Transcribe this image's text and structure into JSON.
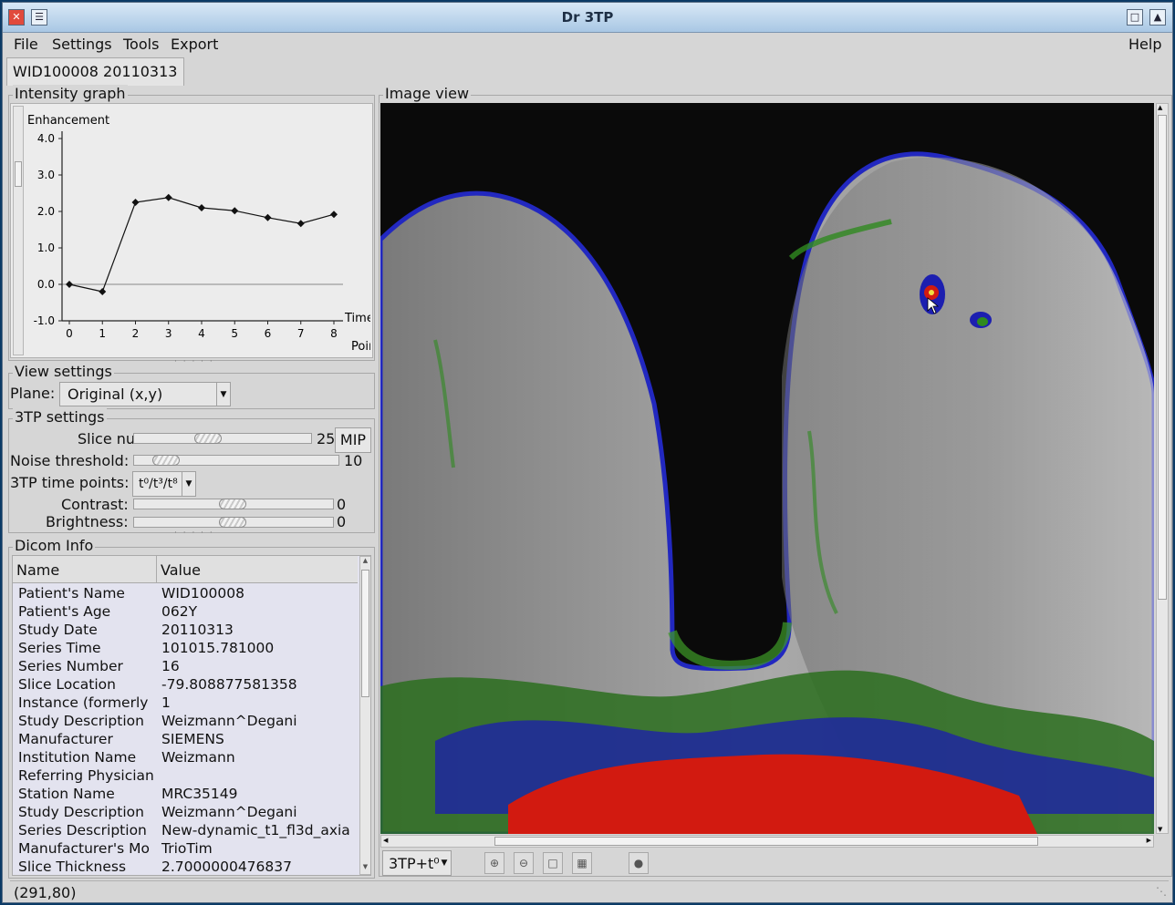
{
  "window": {
    "title": "Dr 3TP"
  },
  "menu": {
    "file": "File",
    "settings": "Settings",
    "tools": "Tools",
    "export": "Export",
    "help": "Help"
  },
  "tab": {
    "label": "WID100008  20110313"
  },
  "intensity": {
    "title": "Intensity graph",
    "chart_data": {
      "type": "line",
      "ylabel": "Enhancement",
      "xlabel": "Time Point",
      "x": [
        0,
        1,
        2,
        3,
        4,
        5,
        6,
        7,
        8
      ],
      "values": [
        0.0,
        -0.2,
        2.25,
        2.38,
        2.1,
        2.02,
        1.83,
        1.67,
        1.92
      ],
      "ylim": [
        -1.0,
        4.0
      ],
      "yticks": [
        "4.0",
        "3.0",
        "2.0",
        "1.0",
        "0.0",
        "-1.0"
      ],
      "xticks": [
        "0",
        "1",
        "2",
        "3",
        "4",
        "5",
        "6",
        "7",
        "8"
      ],
      "xlabel_line1": "Time",
      "xlabel_line2": "Point"
    }
  },
  "view_settings": {
    "title": "View settings",
    "plane_label": "Plane:",
    "plane_value": "Original (x,y)"
  },
  "tp_settings": {
    "title": "3TP settings",
    "slice_label": "Slice num:",
    "slice_value": "25",
    "mip_label": "MIP",
    "noise_label": "Noise threshold:",
    "noise_value": "10",
    "timepoints_label": "3TP time points:",
    "timepoints_value": "t⁰/t³/t⁸",
    "contrast_label": "Contrast:",
    "contrast_value": "0",
    "brightness_label": "Brightness:",
    "brightness_value": "0"
  },
  "dicom": {
    "title": "Dicom Info",
    "col_name": "Name",
    "col_value": "Value",
    "rows": [
      [
        "Patient's Name",
        "WID100008"
      ],
      [
        "Patient's Age",
        "062Y"
      ],
      [
        "Study Date",
        "20110313"
      ],
      [
        "Series Time",
        "101015.781000"
      ],
      [
        "Series Number",
        "16"
      ],
      [
        "Slice Location",
        "-79.808877581358"
      ],
      [
        "Instance (formerly",
        "1"
      ],
      [
        "Study Description",
        "Weizmann^Degani"
      ],
      [
        "Manufacturer",
        "SIEMENS"
      ],
      [
        "Institution Name",
        "Weizmann"
      ],
      [
        "Referring Physician",
        ""
      ],
      [
        "Station Name",
        "MRC35149"
      ],
      [
        "Study Description",
        "Weizmann^Degani"
      ],
      [
        "Series Description",
        "New-dynamic_t1_fl3d_axia"
      ],
      [
        "Manufacturer's Mo",
        "TrioTim"
      ],
      [
        "Slice Thickness",
        "2.7000000476837"
      ]
    ]
  },
  "image_view": {
    "title": "Image view",
    "mode_value": "3TP+t⁰"
  },
  "status": {
    "coords": "(291,80)"
  },
  "colors": {
    "titlebar": "#a9c7e4",
    "enhance_red": "#e01a12",
    "enhance_green": "#2f8a1f",
    "enhance_blue": "#1c1fb0"
  }
}
